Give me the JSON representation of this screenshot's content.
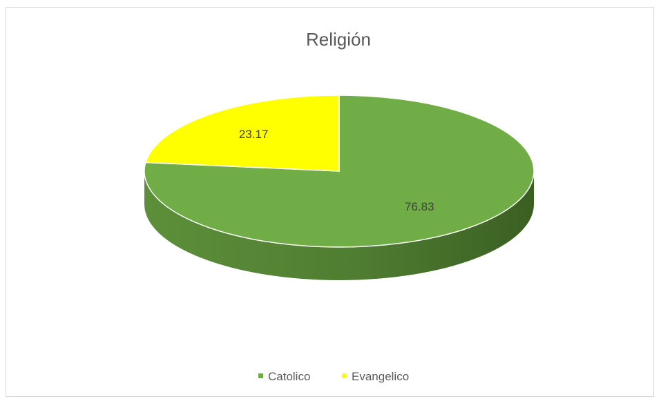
{
  "chart_data": {
    "type": "pie",
    "title": "Religión",
    "categories": [
      "Catolico",
      "Evangelico"
    ],
    "values": [
      76.83,
      23.17
    ],
    "data_labels": [
      "76.83",
      "23.17"
    ],
    "colors": [
      "#70ad47",
      "#ffff00"
    ],
    "side_colors": [
      "#4e7a2f",
      "#b8b800"
    ],
    "style": "3d",
    "legend_position": "bottom"
  }
}
